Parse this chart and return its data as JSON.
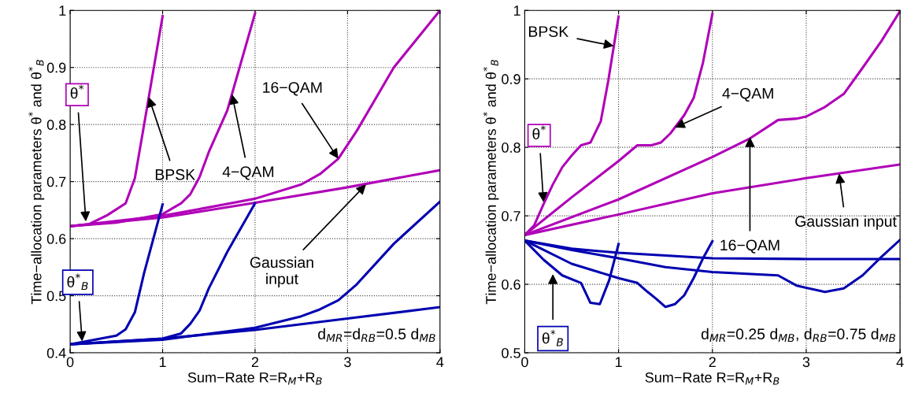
{
  "chart_data": [
    {
      "type": "line",
      "xlabel": "Sum−Rate R=R$_{M}$+R$_{B}$",
      "ylabel": "Time−allocation parameters θ$^{*}$ and θ$^{*}$$_{B}$",
      "xlim": [
        0,
        4
      ],
      "ylim": [
        0.4,
        1
      ],
      "xticks": [
        0,
        1,
        2,
        3,
        4
      ],
      "yticks": [
        0.4,
        0.5,
        0.6,
        0.7,
        0.8,
        0.9,
        1
      ],
      "grid": true,
      "series": [
        {
          "color": "#b000b8",
          "x": [
            0,
            0.2,
            0.4,
            0.6,
            0.7,
            0.8,
            0.9,
            1.0
          ],
          "values": [
            0.622,
            0.625,
            0.641,
            0.662,
            0.706,
            0.8,
            0.895,
            0.99
          ]
        },
        {
          "color": "#b000b8",
          "x": [
            0,
            0.5,
            1.0,
            1.2,
            1.3,
            1.4,
            1.5,
            1.7,
            2.0
          ],
          "values": [
            0.622,
            0.628,
            0.643,
            0.662,
            0.678,
            0.708,
            0.752,
            0.825,
            0.995
          ]
        },
        {
          "color": "#b000b8",
          "x": [
            0,
            1,
            2,
            2.5,
            2.7,
            2.9,
            3.1,
            3.5,
            4.0
          ],
          "values": [
            0.622,
            0.64,
            0.67,
            0.695,
            0.713,
            0.74,
            0.789,
            0.9,
            1.0
          ]
        },
        {
          "color": "#b000b8",
          "x": [
            0,
            1,
            2,
            3,
            4
          ],
          "values": [
            0.622,
            0.637,
            0.663,
            0.69,
            0.72
          ]
        },
        {
          "color": "#0000b0",
          "x": [
            0,
            0.5,
            0.6,
            0.7,
            0.8,
            0.9,
            1.0
          ],
          "values": [
            0.415,
            0.43,
            0.441,
            0.471,
            0.54,
            0.6,
            0.66
          ]
        },
        {
          "color": "#0000b0",
          "x": [
            0,
            1,
            1.2,
            1.3,
            1.4,
            1.5,
            1.7,
            2.0
          ],
          "values": [
            0.415,
            0.425,
            0.434,
            0.451,
            0.474,
            0.513,
            0.577,
            0.662
          ]
        },
        {
          "color": "#0000b0",
          "x": [
            0,
            1,
            2,
            2.5,
            2.7,
            2.9,
            3.1,
            3.5,
            4.0
          ],
          "values": [
            0.415,
            0.423,
            0.444,
            0.464,
            0.476,
            0.492,
            0.52,
            0.591,
            0.665
          ]
        },
        {
          "color": "#0000b0",
          "x": [
            0,
            1,
            2,
            3,
            4
          ],
          "values": [
            0.415,
            0.425,
            0.44,
            0.46,
            0.48
          ]
        }
      ],
      "annotations": [
        {
          "text": "θ$^{*}$",
          "x": 0.17,
          "y": 0.63
        },
        {
          "text": "θ$^{*}$$_{B}$",
          "x": 0.13,
          "y": 0.42
        },
        {
          "text": "BPSK",
          "x": 0.85,
          "y": 0.848
        },
        {
          "text": "4−QAM",
          "x": 1.75,
          "y": 0.853
        },
        {
          "text": "16−QAM",
          "x": 2.9,
          "y": 0.74
        },
        {
          "text": "Gaussian\ninput",
          "x": 3.2,
          "y": 0.695
        },
        "d$_{MR}$=d$_{RB}$=0.5 d$_{MB}$"
      ]
    },
    {
      "type": "line",
      "xlabel": "Sum−Rate R=R$_{M}$+R$_{B}$",
      "ylabel": "Time−allocation parameters θ$^{*}$ and θ$^{*}$$_{B}$",
      "xlim": [
        0,
        4
      ],
      "ylim": [
        0.5,
        1
      ],
      "xticks": [
        0,
        1,
        2,
        3,
        4
      ],
      "yticks": [
        0.5,
        0.6,
        0.7,
        0.8,
        0.9,
        1
      ],
      "grid": true,
      "series": [
        {
          "color": "#b000b8",
          "x": [
            0,
            0.1,
            0.2,
            0.3,
            0.4,
            0.5,
            0.6,
            0.7,
            0.81,
            0.89,
            1.0
          ],
          "values": [
            0.672,
            0.686,
            0.717,
            0.746,
            0.771,
            0.788,
            0.803,
            0.807,
            0.838,
            0.897,
            0.991
          ]
        },
        {
          "color": "#b000b8",
          "x": [
            0,
            0.5,
            1.0,
            1.2,
            1.35,
            1.45,
            1.55,
            1.7,
            1.8,
            1.9,
            2.0
          ],
          "values": [
            0.672,
            0.727,
            0.78,
            0.803,
            0.803,
            0.807,
            0.82,
            0.847,
            0.872,
            0.924,
            0.995
          ]
        },
        {
          "color": "#b000b8",
          "x": [
            0,
            1,
            2,
            2.4,
            2.7,
            2.9,
            3.0,
            3.2,
            3.4,
            3.6,
            3.8,
            4.0
          ],
          "values": [
            0.672,
            0.724,
            0.786,
            0.813,
            0.84,
            0.842,
            0.845,
            0.859,
            0.878,
            0.916,
            0.955,
            0.999
          ]
        },
        {
          "color": "#b000b8",
          "x": [
            0,
            1,
            2,
            3,
            4
          ],
          "values": [
            0.672,
            0.702,
            0.733,
            0.755,
            0.775
          ]
        },
        {
          "color": "#0000b0",
          "x": [
            0,
            0.2,
            0.4,
            0.6,
            0.7,
            0.8,
            0.9,
            1.0
          ],
          "values": [
            0.664,
            0.636,
            0.613,
            0.602,
            0.573,
            0.571,
            0.606,
            0.659
          ]
        },
        {
          "color": "#0000b0",
          "x": [
            0,
            0.5,
            1.0,
            1.2,
            1.3,
            1.4,
            1.5,
            1.6,
            1.7,
            1.8,
            1.9,
            2.0
          ],
          "values": [
            0.664,
            0.63,
            0.609,
            0.602,
            0.59,
            0.579,
            0.567,
            0.571,
            0.584,
            0.609,
            0.638,
            0.663
          ]
        },
        {
          "color": "#0000b0",
          "x": [
            0,
            0.5,
            1,
            1.5,
            2,
            2.7,
            2.9,
            3.2,
            3.4,
            3.6,
            3.8,
            4.0
          ],
          "values": [
            0.664,
            0.65,
            0.638,
            0.625,
            0.618,
            0.613,
            0.598,
            0.589,
            0.594,
            0.613,
            0.64,
            0.665
          ]
        },
        {
          "color": "#0000b0",
          "x": [
            0,
            0.5,
            1,
            2,
            3,
            4
          ],
          "values": [
            0.664,
            0.652,
            0.646,
            0.638,
            0.637,
            0.637
          ]
        }
      ],
      "annotations": [
        {
          "text": "θ$^{*}$",
          "x": 0.2,
          "y": 0.72
        },
        {
          "text": "θ$^{*}$$_{B}$",
          "x": 0.3,
          "y": 0.615
        },
        {
          "text": "BPSK",
          "x": 0.95,
          "y": 0.948
        },
        {
          "text": "4−QAM",
          "x": 1.6,
          "y": 0.829
        },
        {
          "text": "16−QAM",
          "x": 2.4,
          "y": 0.815
        },
        {
          "text": "Gaussian input",
          "x": 3.35,
          "y": 0.762
        },
        "d$_{MR}$=0.25 d$_{MB}$, d$_{RB}$=0.75 d$_{MB}$"
      ]
    }
  ]
}
